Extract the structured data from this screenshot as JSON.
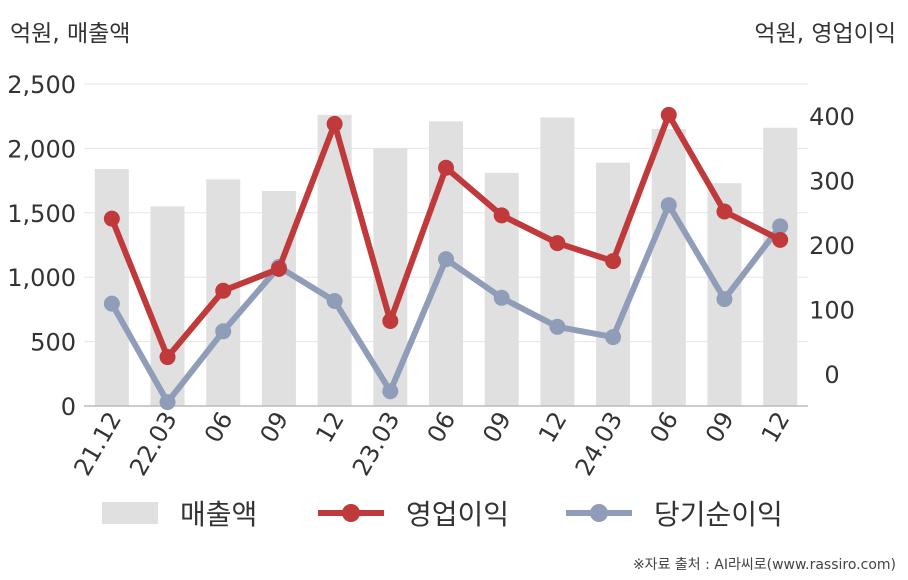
{
  "axis_units": {
    "left": "억원, 매출액",
    "right": "억원, 영업이익"
  },
  "legend": {
    "revenue": "매출액",
    "operating_profit": "영업이익",
    "net_income": "당기순이익"
  },
  "source": "※자료 출처 : AI라씨로(www.rassiro.com)",
  "colors": {
    "revenue": "#e0e0e0",
    "operating_profit": "#c0393b",
    "net_income": "#8f9db8",
    "axis_text": "#333333",
    "grid": "#e6e6e6"
  },
  "chart_data": {
    "type": "bar+line",
    "categories": [
      "21.12",
      "22.03",
      "06",
      "09",
      "12",
      "23.03",
      "06",
      "09",
      "12",
      "24.03",
      "06",
      "09",
      "12"
    ],
    "left_axis": {
      "ylim": [
        0,
        2500
      ],
      "ticks": [
        0,
        500,
        1000,
        1500,
        2000,
        2500
      ],
      "tick_labels": [
        "0",
        "500",
        "1,000",
        "1,500",
        "2,000",
        "2,500"
      ]
    },
    "right_axis": {
      "ylim": [
        -50,
        450
      ],
      "ticks": [
        0,
        100,
        200,
        300,
        400
      ],
      "tick_labels": [
        "0",
        "100",
        "200",
        "300",
        "400"
      ]
    },
    "series": [
      {
        "name": "매출액",
        "type": "bar",
        "axis": "left",
        "values": [
          1840,
          1550,
          1760,
          1670,
          2260,
          2000,
          2210,
          1810,
          2240,
          1890,
          2150,
          1730,
          2160
        ]
      },
      {
        "name": "영업이익",
        "type": "line",
        "axis": "right",
        "values": [
          241,
          26,
          129,
          163,
          388,
          82,
          320,
          246,
          203,
          175,
          402,
          252,
          208
        ]
      },
      {
        "name": "당기순이익",
        "type": "line",
        "axis": "right",
        "values": [
          109,
          -44,
          66,
          166,
          113,
          -27,
          178,
          118,
          73,
          57,
          262,
          116,
          229
        ]
      }
    ],
    "grid": true,
    "legend_position": "bottom"
  }
}
